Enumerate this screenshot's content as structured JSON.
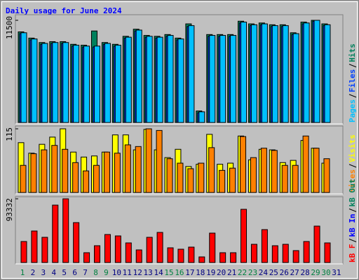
{
  "chart_data": {
    "type": "bar",
    "title": "Daily usage for June 2024",
    "title_color": "#0000ff",
    "categories": [
      "1",
      "2",
      "3",
      "4",
      "5",
      "6",
      "7",
      "8",
      "9",
      "10",
      "11",
      "12",
      "13",
      "14",
      "15",
      "16",
      "17",
      "18",
      "19",
      "20",
      "21",
      "22",
      "23",
      "24",
      "25",
      "26",
      "27",
      "28",
      "29",
      "30",
      "31"
    ],
    "category_colors": [
      "#008040",
      "#000080",
      "#000080",
      "#000080",
      "#000080",
      "#000080",
      "#000080",
      "#008040",
      "#008040",
      "#000080",
      "#000080",
      "#000080",
      "#000080",
      "#000080",
      "#008040",
      "#008040",
      "#000080",
      "#000080",
      "#000080",
      "#000080",
      "#000080",
      "#008040",
      "#008040",
      "#000080",
      "#000080",
      "#000080",
      "#000080",
      "#000080",
      "#008040",
      "#008040",
      "#000080"
    ],
    "panels": [
      {
        "ylim": [
          0,
          11500
        ],
        "yticks": [
          11500
        ],
        "series": [
          {
            "name": "Hits",
            "color": "#00805c",
            "values": [
              10200,
              9500,
              9000,
              9100,
              9100,
              8800,
              8700,
              10300,
              9000,
              8800,
              9700,
              10500,
              9800,
              9700,
              9900,
              9500,
              11100,
              1300,
              9900,
              9900,
              9900,
              11400,
              11100,
              11200,
              11000,
              11000,
              10100,
              11300,
              11500,
              11100,
              null
            ]
          },
          {
            "name": "Files",
            "color": "#0040ff",
            "values": [
              10000,
              9300,
              8800,
              8900,
              8900,
              8600,
              8500,
              8500,
              8800,
              8600,
              9500,
              10300,
              9600,
              9500,
              9700,
              9300,
              10800,
              1100,
              9700,
              9700,
              9700,
              11200,
              10900,
              11000,
              10800,
              10800,
              9900,
              11100,
              11400,
              10900,
              null
            ]
          },
          {
            "name": "Pages",
            "color": "#00c0ff",
            "values": [
              10100,
              9400,
              8900,
              9000,
              9000,
              8700,
              8600,
              8600,
              8900,
              8700,
              9600,
              10400,
              9700,
              9600,
              9800,
              9400,
              10900,
              1200,
              9800,
              9800,
              9800,
              11300,
              11000,
              11100,
              10900,
              10900,
              10000,
              11200,
              11500,
              11000,
              null
            ]
          }
        ]
      },
      {
        "ylim": [
          0,
          115
        ],
        "yticks": [
          115
        ],
        "series": [
          {
            "name": "Visits",
            "color": "#ffff00",
            "values": [
              90,
              71,
              87,
              100,
              115,
              73,
              64,
              66,
              73,
              104,
              104,
              77,
              114,
              77,
              63,
              78,
              47,
              51,
              105,
              51,
              53,
              102,
              59,
              78,
              77,
              54,
              58,
              94,
              80,
              53,
              null
            ]
          },
          {
            "name": "Sites",
            "color": "#ff8000",
            "values": [
              49,
              70,
              77,
              85,
              78,
              54,
              39,
              49,
              73,
              71,
              86,
              83,
              115,
              112,
              61,
              53,
              43,
              53,
              81,
              40,
              44,
              101,
              63,
              80,
              76,
              49,
              49,
              102,
              80,
              61,
              null
            ]
          }
        ]
      },
      {
        "ylim": [
          0,
          93332
        ],
        "yticks": [
          93332
        ],
        "series": [
          {
            "name": "kB Out",
            "color": "#00805c",
            "values": [
              0,
              0,
              0,
              0,
              0,
              0,
              0,
              0,
              0,
              0,
              0,
              0,
              0,
              0,
              0,
              0,
              0,
              0,
              0,
              0,
              0,
              0,
              0,
              0,
              0,
              0,
              0,
              0,
              0,
              0,
              null
            ]
          },
          {
            "name": "kB In",
            "color": "#0000ff",
            "values": [
              0,
              0,
              0,
              0,
              0,
              0,
              0,
              0,
              0,
              0,
              0,
              0,
              0,
              0,
              0,
              0,
              0,
              0,
              0,
              0,
              0,
              0,
              0,
              0,
              0,
              0,
              0,
              0,
              0,
              0,
              null
            ]
          },
          {
            "name": "kB F",
            "color": "#ff0000",
            "values": [
              30770,
              46150,
              36920,
              84100,
              93332,
              58460,
              14360,
              24610,
              41020,
              38970,
              28720,
              18460,
              36920,
              44100,
              21540,
              19490,
              22560,
              8200,
              43070,
              14360,
              14360,
              77940,
              26670,
              48200,
              24610,
              26670,
              17440,
              30770,
              53330,
              28720,
              null
            ]
          }
        ]
      }
    ]
  }
}
